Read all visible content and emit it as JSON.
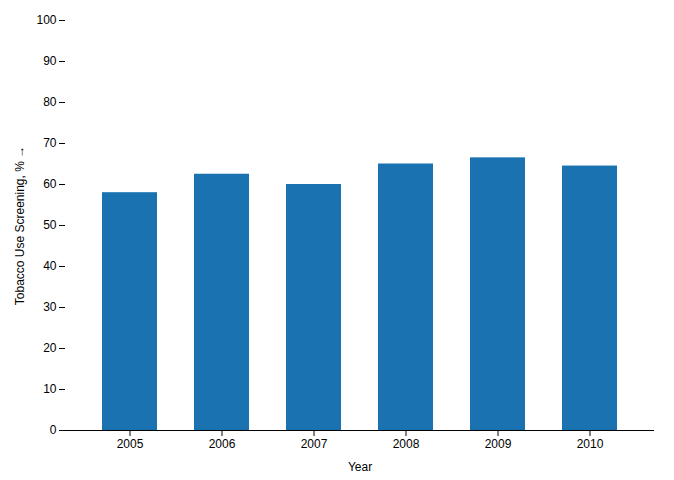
{
  "chart_data": {
    "type": "bar",
    "categories": [
      "2005",
      "2006",
      "2007",
      "2008",
      "2009",
      "2010"
    ],
    "values": [
      58.0,
      62.5,
      60.0,
      65.0,
      66.5,
      64.5
    ],
    "color": "#1a72b0",
    "xlabel": "Year",
    "ylabel": "Tobacco Use Screening, %",
    "ylim": [
      0,
      100
    ],
    "yticks": [
      0,
      10,
      20,
      30,
      40,
      50,
      60,
      70,
      80,
      90,
      100
    ],
    "grid": false
  }
}
